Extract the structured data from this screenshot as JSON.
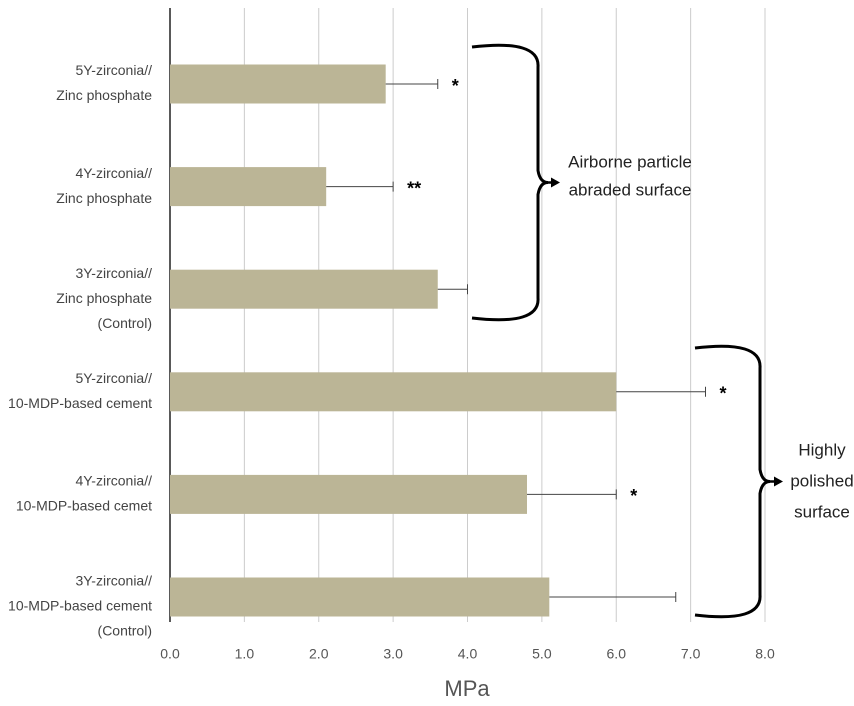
{
  "chart_data": {
    "type": "hbar",
    "categories": [
      [
        "5Y-zirconia//",
        "Zinc phosphate"
      ],
      [
        "4Y-zirconia//",
        "Zinc phosphate"
      ],
      [
        "3Y-zirconia//",
        "Zinc phosphate",
        "(Control)"
      ],
      [
        "5Y-zirconia//",
        "10-MDP-based cement"
      ],
      [
        "4Y-zirconia//",
        "10-MDP-based cemet"
      ],
      [
        "3Y-zirconia//",
        "10-MDP-based cement",
        "(Control)"
      ]
    ],
    "values": [
      2.9,
      2.1,
      3.6,
      6.0,
      4.8,
      5.1
    ],
    "errors": [
      0.7,
      0.9,
      0.4,
      1.2,
      1.2,
      1.7
    ],
    "significance": [
      "*",
      "**",
      null,
      "*",
      "*",
      null
    ],
    "color": "#bbb596",
    "xlabel": "MPa",
    "xlim": [
      0,
      8
    ],
    "xticks": [
      {
        "value": 0,
        "label": "0.0"
      },
      {
        "value": 1,
        "label": "1.0"
      },
      {
        "value": 2,
        "label": "2.0"
      },
      {
        "value": 3,
        "label": "3.0"
      },
      {
        "value": 4,
        "label": "4.0"
      },
      {
        "value": 5,
        "label": "5.0"
      },
      {
        "value": 6,
        "label": "6.0"
      },
      {
        "value": 7,
        "label": "7.0"
      },
      {
        "value": 8,
        "label": "8.0"
      }
    ],
    "grid": true,
    "groups": [
      {
        "label": [
          "Airborne particle",
          "abraded surface"
        ]
      },
      {
        "label": [
          "Highly",
          "polished",
          "surface"
        ]
      }
    ]
  }
}
